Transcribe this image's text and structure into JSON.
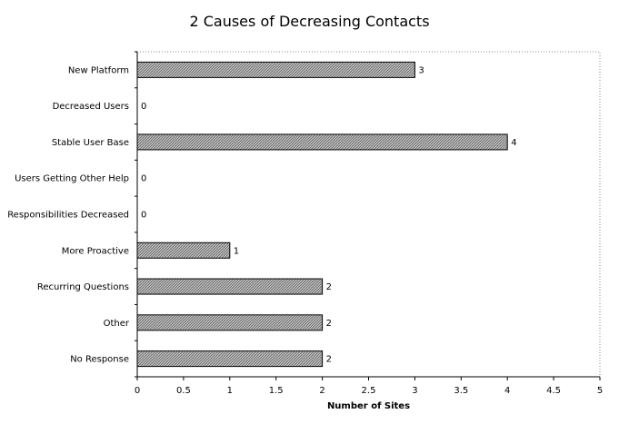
{
  "chart_data": {
    "type": "bar",
    "orientation": "horizontal",
    "title": "2 Causes of Decreasing Contacts",
    "xlabel": "Number of Sites",
    "ylabel": "",
    "categories": [
      "New Platform",
      "Decreased Users",
      "Stable User Base",
      "Users Getting Other Help",
      "Responsibilities Decreased",
      "More Proactive",
      "Recurring Questions",
      "Other",
      "No Response"
    ],
    "values": [
      3,
      0,
      4,
      0,
      0,
      1,
      2,
      2,
      2
    ],
    "xlim": [
      0,
      5
    ],
    "xticks": [
      "0",
      "0.5",
      "1",
      "1.5",
      "2",
      "2.5",
      "3",
      "3.5",
      "4",
      "4.5",
      "5"
    ],
    "data_labels": true,
    "grid": false,
    "legend": "none"
  }
}
